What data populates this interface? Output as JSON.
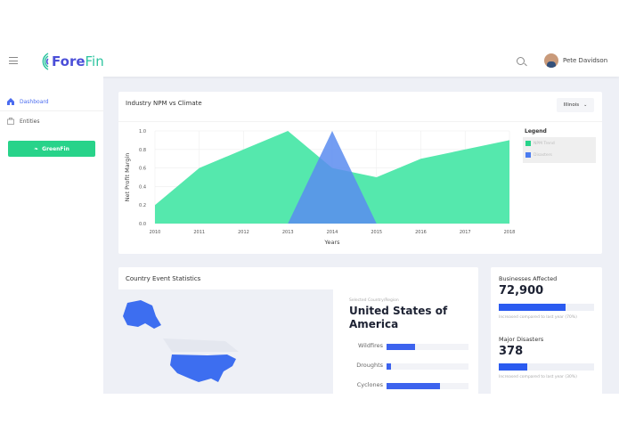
{
  "header": {
    "brand_part1": "Fore",
    "brand_part2": "Fin",
    "user_name": "Pete Davidson"
  },
  "sidebar": {
    "items": [
      {
        "label": "Dashboard",
        "icon": "home-icon",
        "active": true
      },
      {
        "label": "Entities",
        "icon": "briefcase-icon"
      }
    ],
    "greenfin_label": "GreenFin"
  },
  "colors": {
    "accent": "#4b6cf0",
    "green": "#28d38a",
    "npm": "#55e8ad",
    "disasters": "#5b8cf0"
  },
  "chart_card": {
    "title": "Industry NPM vs Climate",
    "region_select": "Illinois",
    "legend_title": "Legend"
  },
  "chart_data": {
    "type": "area",
    "x": [
      2010,
      2011,
      2012,
      2013,
      2014,
      2015,
      2016,
      2017,
      2018
    ],
    "xlabel": "Years",
    "ylabel": "Net Profit Margin",
    "ylim": [
      0,
      1
    ],
    "yticks": [
      "0.0",
      "0.2",
      "0.4",
      "0.6",
      "0.8",
      "1.0"
    ],
    "grid": true,
    "legend_placement": "right",
    "series": [
      {
        "name": "NPM Trend",
        "values": [
          0.2,
          0.6,
          0.8,
          1.0,
          0.6,
          0.5,
          0.7,
          0.8,
          0.9
        ],
        "color": "#55e8ad"
      },
      {
        "name": "Disasters",
        "values": [
          null,
          null,
          null,
          0,
          1.0,
          0,
          null,
          null,
          null
        ],
        "color": "#5b8cf0"
      }
    ]
  },
  "country_card": {
    "title": "Country Event Statistics",
    "selected_label": "Selected Country/Region",
    "country": "United States of America",
    "events": [
      {
        "label": "Wildfires",
        "percent": 35
      },
      {
        "label": "Droughts",
        "percent": 5
      },
      {
        "label": "Cyclones",
        "percent": 65
      }
    ]
  },
  "stats": [
    {
      "title": "Businesses Affected",
      "value": "72,900",
      "percent": 70,
      "note": "Increased compared to last year (70%)"
    },
    {
      "title": "Major Disasters",
      "value": "378",
      "percent": 30,
      "note": "Increased compared to last year (30%)"
    }
  ]
}
